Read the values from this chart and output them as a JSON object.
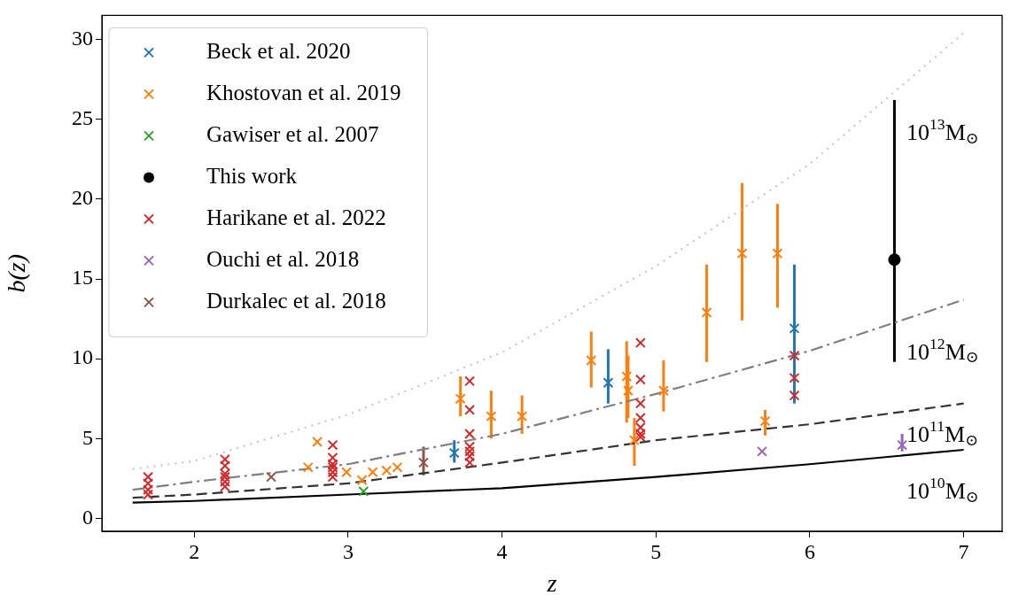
{
  "chart_data": {
    "type": "scatter",
    "xlabel": "z",
    "ylabel": "b(z)",
    "xlim": [
      1.4,
      7.25
    ],
    "ylim": [
      -0.8,
      31.5
    ],
    "xticks": [
      2,
      3,
      4,
      5,
      6,
      7
    ],
    "yticks": [
      0,
      5,
      10,
      15,
      20,
      25,
      30
    ],
    "grid": false,
    "legend": "top left",
    "marker": "cross",
    "series": [
      {
        "name": "Beck et al. 2020",
        "color": "#1f77b4",
        "x": [
          3.69,
          4.69,
          5.9
        ],
        "values": [
          4.1,
          8.5,
          11.9
        ],
        "errors": [
          [
            3.5,
            4.9
          ],
          [
            7.2,
            10.6
          ],
          [
            7.2,
            15.9
          ]
        ]
      },
      {
        "name": "Khostovan et al. 2019",
        "color": "#ff7f0e",
        "x": [
          2.74,
          2.8,
          2.99,
          3.09,
          3.16,
          3.25,
          3.32,
          3.73,
          3.93,
          4.13,
          4.58,
          4.81,
          4.82,
          4.86,
          5.05,
          5.33,
          5.56,
          5.71,
          5.79
        ],
        "values": [
          3.2,
          4.8,
          2.9,
          2.4,
          2.9,
          3.0,
          3.2,
          7.5,
          6.4,
          6.4,
          9.9,
          8.9,
          8.0,
          4.9,
          8.0,
          12.9,
          16.6,
          6.1,
          16.6
        ],
        "errors": [
          null,
          null,
          null,
          null,
          null,
          null,
          null,
          [
            6.4,
            8.9
          ],
          [
            5.0,
            8.0
          ],
          [
            5.3,
            7.7
          ],
          [
            8.2,
            11.7
          ],
          [
            6.0,
            11.1
          ],
          [
            6.3,
            10.2
          ],
          [
            3.3,
            6.3
          ],
          [
            6.7,
            9.9
          ],
          [
            9.8,
            15.9
          ],
          [
            12.4,
            21.0
          ],
          [
            5.2,
            6.8
          ],
          [
            13.2,
            19.7
          ]
        ]
      },
      {
        "name": "Gawiser et al. 2007",
        "color": "#2ca02c",
        "x": [
          3.1
        ],
        "values": [
          1.7
        ]
      },
      {
        "name": "This work",
        "color": "#000000",
        "marker": "circle",
        "x": [
          6.55
        ],
        "values": [
          16.2
        ],
        "errors": [
          [
            9.8,
            26.2
          ]
        ]
      },
      {
        "name": "Harikane et al. 2022",
        "color": "#d62728",
        "x": [
          1.7,
          1.7,
          1.7,
          1.7,
          2.2,
          2.2,
          2.2,
          2.2,
          2.2,
          2.2,
          2.9,
          2.9,
          2.9,
          2.9,
          2.9,
          2.9,
          3.79,
          3.79,
          3.79,
          3.79,
          3.79,
          3.79,
          3.79,
          4.9,
          4.9,
          4.9,
          4.9,
          4.9,
          4.9,
          4.9,
          5.9,
          5.9,
          5.9
        ],
        "values": [
          2.6,
          2.2,
          1.8,
          1.5,
          3.7,
          3.3,
          2.8,
          2.6,
          2.3,
          2.0,
          4.6,
          3.8,
          3.4,
          3.2,
          2.9,
          2.6,
          8.6,
          6.8,
          5.3,
          4.5,
          4.2,
          3.9,
          3.5,
          11.0,
          8.7,
          7.2,
          6.3,
          5.7,
          5.3,
          5.1,
          10.2,
          8.8,
          7.7
        ]
      },
      {
        "name": "Ouchi et al. 2018",
        "color": "#9467bd",
        "x": [
          5.69,
          6.6
        ],
        "values": [
          4.2,
          4.6
        ],
        "errors": [
          null,
          [
            4.2,
            5.3
          ]
        ]
      },
      {
        "name": "Durkalec et al. 2018",
        "color": "#8c564b",
        "x": [
          2.5,
          3.49
        ],
        "values": [
          2.6,
          3.5
        ],
        "errors": [
          null,
          [
            2.7,
            4.5
          ]
        ]
      },
      {
        "type": "line",
        "color": "#000000",
        "line_style": "solid",
        "marker": "none",
        "x": [
          1.6,
          2,
          3,
          4,
          5,
          6,
          7
        ],
        "values": [
          1.0,
          1.1,
          1.5,
          1.9,
          2.6,
          3.4,
          4.3
        ]
      },
      {
        "type": "line",
        "color": "#333333",
        "line_style": "dashed",
        "marker": "none",
        "x": [
          1.6,
          2,
          3,
          4,
          5,
          6,
          7
        ],
        "values": [
          1.3,
          1.5,
          2.2,
          3.5,
          4.9,
          5.9,
          7.2
        ]
      },
      {
        "type": "line",
        "color": "#7f7f7f",
        "line_style": "dashdot",
        "marker": "none",
        "x": [
          1.6,
          2,
          3,
          4,
          5,
          6,
          7
        ],
        "values": [
          1.8,
          2.3,
          3.4,
          5.3,
          7.8,
          10.5,
          13.7
        ]
      },
      {
        "type": "line",
        "color": "#c8c8c8",
        "line_style": "dotted",
        "marker": "none",
        "x": [
          1.6,
          2,
          3,
          4,
          5,
          6,
          7
        ],
        "values": [
          3.1,
          3.6,
          6.5,
          10.4,
          15.8,
          22.2,
          30.4
        ]
      }
    ],
    "annotations": [
      "10$^{13}$M$_{⊙}$",
      "10$^{12}$M$_{⊙}$",
      "10$^{11}$M$_{⊙}$",
      "10$^{10}$M$_{⊙}$"
    ]
  }
}
